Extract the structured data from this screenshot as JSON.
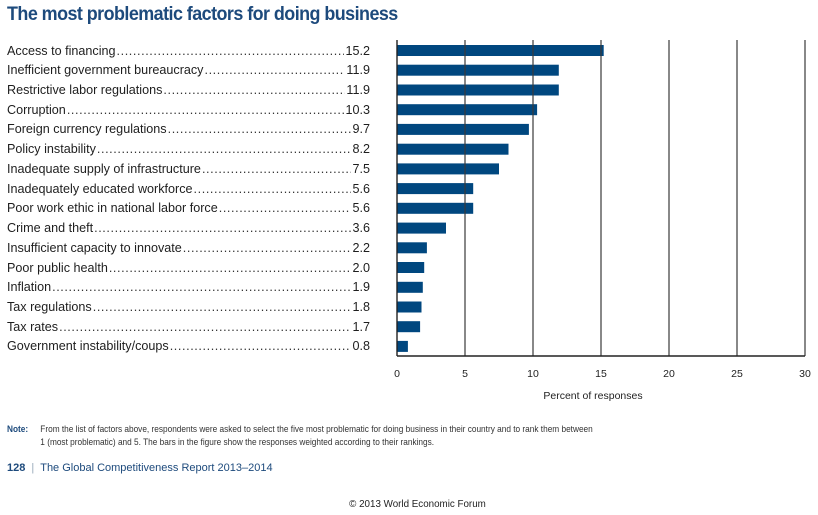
{
  "page": {
    "title": "The most problematic factors for doing business",
    "note_label": "Note:",
    "note_line1": "From the list of factors above, respondents were asked to select the five most problematic for doing business in their country and to rank them between",
    "note_line2": "1 (most problematic) and 5. The bars in the figure show the responses weighted according to their rankings.",
    "page_number": "128",
    "report_title": "The Global Competitiveness Report 2013–2014",
    "copyright": "© 2013 World Economic Forum"
  },
  "chart_data": {
    "type": "bar",
    "orientation": "horizontal",
    "title": "The most problematic factors for doing business",
    "xlabel": "Percent of responses",
    "ylabel": "",
    "xlim": [
      0,
      30
    ],
    "xticks": [
      0,
      5,
      10,
      15,
      20,
      25,
      30
    ],
    "grid": true,
    "bar_color": "#00477f",
    "categories": [
      "Access to financing",
      "Inefficient government bureaucracy",
      "Restrictive labor regulations",
      "Corruption",
      "Foreign currency regulations",
      "Policy instability",
      "Inadequate supply of infrastructure",
      "Inadequately educated workforce",
      "Poor work ethic in national labor force",
      "Crime and theft",
      "Insufficient capacity to innovate",
      "Poor public health",
      "Inflation",
      "Tax regulations",
      "Tax rates",
      "Government instability/coups"
    ],
    "values": [
      15.2,
      11.9,
      11.9,
      10.3,
      9.7,
      8.2,
      7.5,
      5.6,
      5.6,
      3.6,
      2.2,
      2.0,
      1.9,
      1.8,
      1.7,
      0.8
    ],
    "value_labels": [
      "15.2",
      "11.9",
      "11.9",
      "10.3",
      "9.7",
      "8.2",
      "7.5",
      "5.6",
      "5.6",
      "3.6",
      "2.2",
      "2.0",
      "1.9",
      "1.8",
      "1.7",
      "0.8"
    ]
  }
}
